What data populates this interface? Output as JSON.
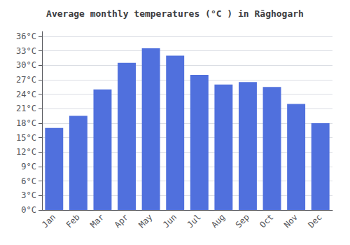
{
  "chart_data": {
    "type": "bar",
    "title": "Average monthly temperatures (°C ) in Rāghogarh",
    "categories": [
      "Jan",
      "Feb",
      "Mar",
      "Apr",
      "May",
      "Jun",
      "Jul",
      "Aug",
      "Sep",
      "Oct",
      "Nov",
      "Dec"
    ],
    "values": [
      17.0,
      19.5,
      25.0,
      30.5,
      33.5,
      32.0,
      28.0,
      26.0,
      26.5,
      25.5,
      22.0,
      18.0
    ],
    "ylim": [
      0,
      37
    ],
    "yticks": [
      {
        "value": 0,
        "label": "0°C"
      },
      {
        "value": 3,
        "label": "3°C"
      },
      {
        "value": 6,
        "label": "6°C"
      },
      {
        "value": 9,
        "label": "9°C"
      },
      {
        "value": 12,
        "label": "12°C"
      },
      {
        "value": 15,
        "label": "15°C"
      },
      {
        "value": 18,
        "label": "18°C"
      },
      {
        "value": 21,
        "label": "21°C"
      },
      {
        "value": 24,
        "label": "24°C"
      },
      {
        "value": 27,
        "label": "27°C"
      },
      {
        "value": 30,
        "label": "30°C"
      },
      {
        "value": 33,
        "label": "33°C"
      },
      {
        "value": 36,
        "label": "36°C"
      }
    ],
    "grid": true
  }
}
